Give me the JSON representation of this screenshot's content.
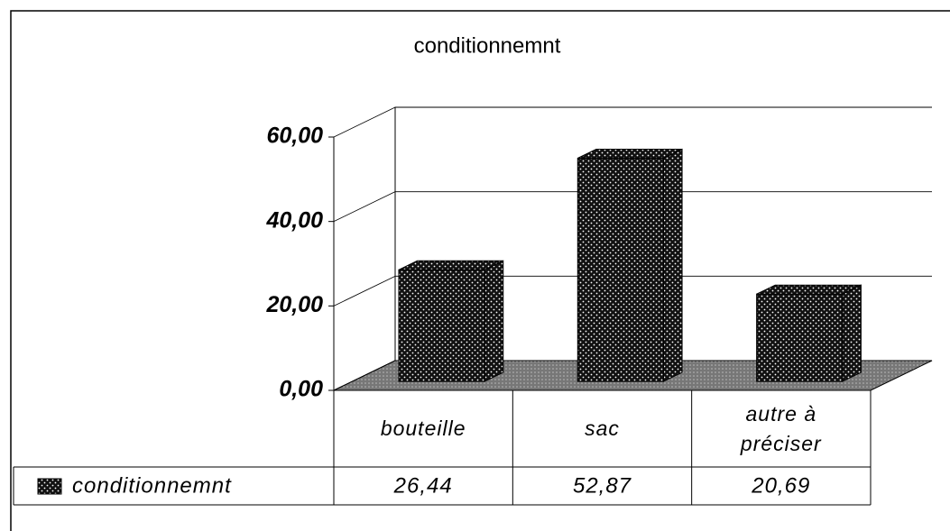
{
  "chart_data": {
    "type": "bar3d",
    "title": "conditionnemnt",
    "categories": [
      "bouteille",
      "sac",
      "autre à préciser"
    ],
    "series": [
      {
        "name": "conditionnemnt",
        "color": "#1a1a1a",
        "values": [
          26.44,
          52.87,
          20.69
        ],
        "value_labels": [
          "26,44",
          "52,87",
          "20,69"
        ]
      }
    ],
    "ylim": [
      0,
      60
    ],
    "yticks": [
      {
        "value": 0,
        "label": "0,00"
      },
      {
        "value": 20,
        "label": "20,00"
      },
      {
        "value": 40,
        "label": "40,00"
      },
      {
        "value": 60,
        "label": "60,00"
      }
    ],
    "grid": true,
    "data_table": true
  }
}
